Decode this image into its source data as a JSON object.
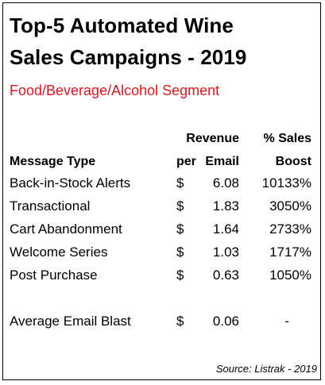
{
  "title_line1": "Top-5 Automated Wine",
  "title_line2": "Sales Campaigns - 2019",
  "subtitle": "Food/Beverage/Alcohol Segment",
  "colors": {
    "title": "#000000",
    "subtitle": "#e3151a",
    "border": "#000000",
    "background": "#ffffff"
  },
  "headers": {
    "message_type": "Message Type",
    "revenue_top": "Revenue",
    "per": "per",
    "email": "Email",
    "boost_top": "% Sales",
    "boost_bottom": "Boost"
  },
  "rows": [
    {
      "type": "Back-in-Stock Alerts",
      "currency": "$",
      "revenue": "6.08",
      "boost": "10133%"
    },
    {
      "type": "Transactional",
      "currency": "$",
      "revenue": "1.83",
      "boost": "3050%"
    },
    {
      "type": "Cart Abandonment",
      "currency": "$",
      "revenue": "1.64",
      "boost": "2733%"
    },
    {
      "type": "Welcome Series",
      "currency": "$",
      "revenue": "1.03",
      "boost": "1717%"
    },
    {
      "type": "Post Purchase",
      "currency": "$",
      "revenue": "0.63",
      "boost": "1050%"
    }
  ],
  "average": {
    "type": "Average Email Blast",
    "currency": "$",
    "revenue": "0.06",
    "boost": "-"
  },
  "source": "Source: Listrak - 2019"
}
